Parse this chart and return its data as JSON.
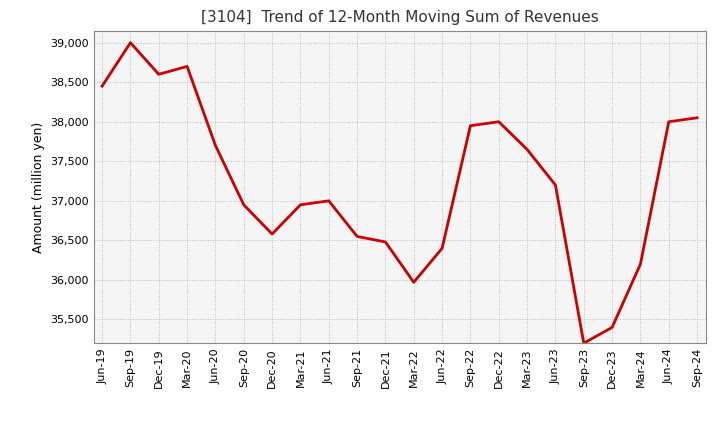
{
  "title": "[3104]  Trend of 12-Month Moving Sum of Revenues",
  "ylabel": "Amount (million yen)",
  "line_color": "#cc0000",
  "background_color": "#ffffff",
  "plot_bg_color": "#f5f5f5",
  "grid_color": "#bbbbbb",
  "ylim": [
    35200,
    39150
  ],
  "yticks": [
    35500,
    36000,
    36500,
    37000,
    37500,
    38000,
    38500,
    39000
  ],
  "labels": [
    "Jun-19",
    "Sep-19",
    "Dec-19",
    "Mar-20",
    "Jun-20",
    "Sep-20",
    "Dec-20",
    "Mar-21",
    "Jun-21",
    "Sep-21",
    "Dec-21",
    "Mar-22",
    "Jun-22",
    "Sep-22",
    "Dec-22",
    "Mar-23",
    "Jun-23",
    "Sep-23",
    "Dec-23",
    "Mar-24",
    "Jun-24",
    "Sep-24"
  ],
  "values": [
    38450,
    39000,
    38600,
    38700,
    37700,
    36950,
    36580,
    36950,
    37000,
    36550,
    36480,
    35970,
    36400,
    37950,
    38000,
    37650,
    37200,
    35200,
    35400,
    36200,
    38000,
    38050
  ],
  "title_color": "#333333",
  "title_fontsize": 11,
  "ylabel_fontsize": 9,
  "tick_fontsize": 8,
  "linewidth": 2.0
}
